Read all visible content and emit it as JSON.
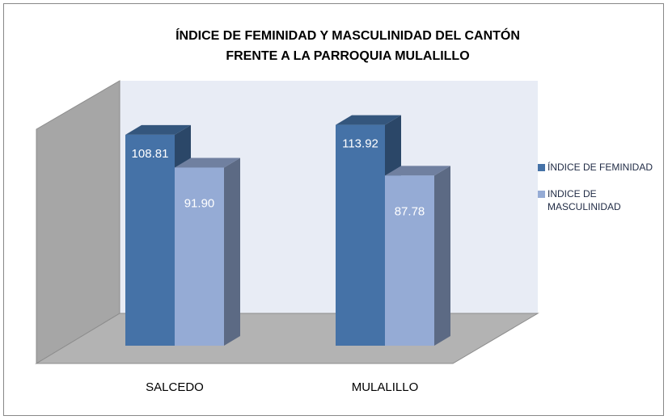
{
  "chart_data": {
    "type": "bar3d",
    "title": "ÍNDICE DE FEMINIDAD Y MASCULINIDAD DEL CANTÓN FRENTE A LA  PARROQUIA MULALILLO",
    "categories": [
      "SALCEDO",
      "MULALILLO"
    ],
    "series": [
      {
        "name": "ÍNDICE DE FEMINIDAD",
        "color": "#4572a7",
        "values": [
          108.81,
          113.92
        ],
        "value_labels": [
          "108.81",
          "113.92"
        ]
      },
      {
        "name": "INDICE DE MASCULINIDAD",
        "color": "#95abd5",
        "values": [
          91.9,
          87.78
        ],
        "value_labels": [
          "91.90",
          "87.78"
        ]
      }
    ],
    "legend": "right"
  }
}
